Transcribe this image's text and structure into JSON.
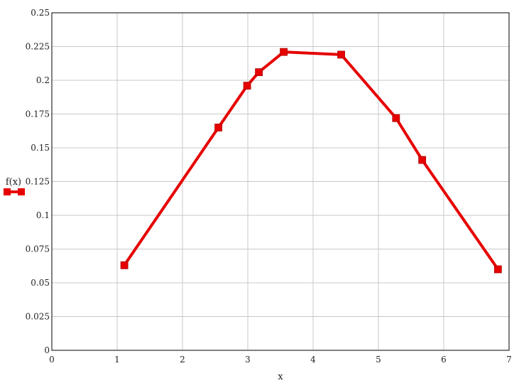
{
  "chart_data": {
    "type": "line",
    "title": "",
    "xlabel": "x",
    "ylabel": "",
    "xlim": [
      0,
      7
    ],
    "ylim": [
      0,
      0.25
    ],
    "x_ticks": [
      "0",
      "1",
      "2",
      "3",
      "4",
      "5",
      "6",
      "7"
    ],
    "y_ticks": [
      "0",
      "0.025",
      "0.05",
      "0.075",
      "0.1",
      "0.125",
      "0.15",
      "0.175",
      "0.2",
      "0.225",
      "0.25"
    ],
    "grid": true,
    "legend_placement": "left",
    "series": [
      {
        "name": "f(x)",
        "color": "#e60000",
        "marker": "square",
        "x": [
          1.11,
          2.55,
          2.99,
          3.17,
          3.55,
          4.43,
          5.27,
          5.67,
          6.83
        ],
        "y": [
          0.063,
          0.165,
          0.196,
          0.206,
          0.221,
          0.219,
          0.172,
          0.141,
          0.06
        ]
      }
    ]
  }
}
